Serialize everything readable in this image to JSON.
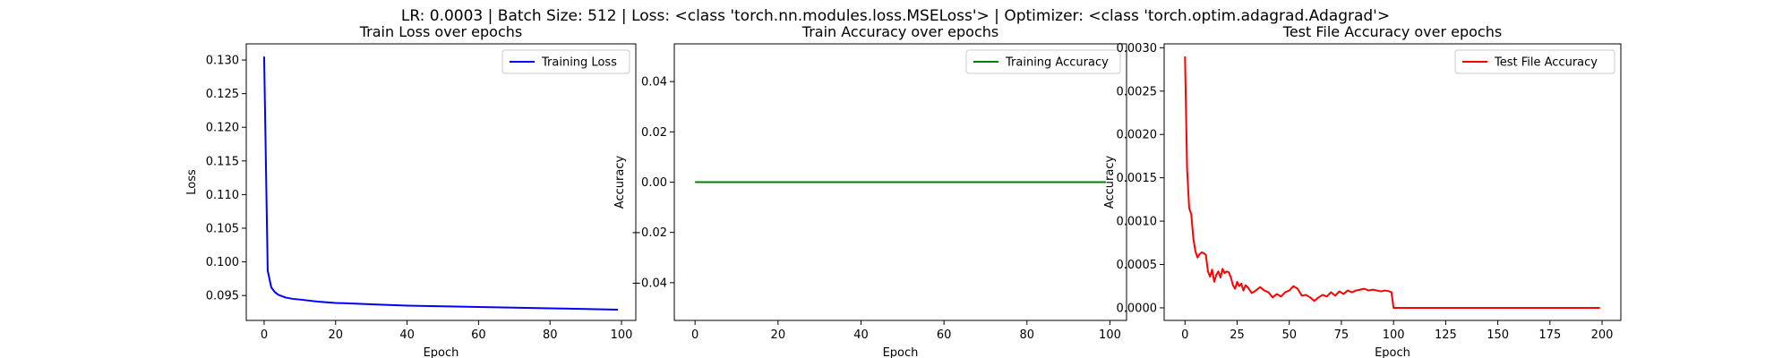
{
  "figure": {
    "suptitle": "LR: 0.0003 | Batch Size: 512 | Loss: <class 'torch.nn.modules.loss.MSELoss'> | Optimizer: <class 'torch.optim.adagrad.Adagrad'>"
  },
  "chart_data": [
    {
      "type": "line",
      "title": "Train Loss over epochs",
      "xlabel": "Epoch",
      "ylabel": "Loss",
      "xlim": [
        -5,
        104
      ],
      "ylim": [
        0.0913,
        0.1324
      ],
      "xticks": [
        0,
        20,
        40,
        60,
        80,
        100
      ],
      "yticks": [
        0.095,
        0.1,
        0.105,
        0.11,
        0.115,
        0.12,
        0.125,
        0.13
      ],
      "ytick_labels": [
        "0.095",
        "0.100",
        "0.105",
        "0.110",
        "0.115",
        "0.120",
        "0.125",
        "0.130"
      ],
      "legend": "top-right",
      "grid": false,
      "series": [
        {
          "name": "Training Loss",
          "color": "#0000ff",
          "x": [
            0,
            1,
            2,
            3,
            4,
            5,
            6,
            8,
            10,
            15,
            20,
            30,
            40,
            50,
            60,
            70,
            80,
            90,
            99
          ],
          "y": [
            0.1305,
            0.0987,
            0.0962,
            0.0955,
            0.0951,
            0.0949,
            0.0947,
            0.0945,
            0.0944,
            0.0941,
            0.0939,
            0.0937,
            0.0935,
            0.0934,
            0.0933,
            0.0932,
            0.0931,
            0.093,
            0.0929
          ]
        }
      ]
    },
    {
      "type": "line",
      "title": "Train Accuracy over epochs",
      "xlabel": "Epoch",
      "ylabel": "Accuracy",
      "xlim": [
        -5,
        104
      ],
      "ylim": [
        -0.055,
        0.055
      ],
      "xticks": [
        0,
        20,
        40,
        60,
        80,
        100
      ],
      "yticks": [
        -0.04,
        -0.02,
        0,
        0.02,
        0.04
      ],
      "ytick_labels": [
        "−0.04",
        "−0.02",
        "0.00",
        "0.02",
        "0.04"
      ],
      "legend": "top-right",
      "grid": false,
      "series": [
        {
          "name": "Training Accuracy",
          "color": "#008000",
          "x": [
            0,
            99
          ],
          "y": [
            0,
            0
          ]
        }
      ]
    },
    {
      "type": "line",
      "title": "Test File Accuracy over epochs",
      "xlabel": "Epoch",
      "ylabel": "Accuracy",
      "xlim": [
        -10,
        209
      ],
      "ylim": [
        -0.000145,
        0.003045
      ],
      "xticks": [
        0,
        25,
        50,
        75,
        100,
        125,
        150,
        175,
        200
      ],
      "yticks": [
        0,
        0.0005,
        0.001,
        0.0015,
        0.002,
        0.0025,
        0.003
      ],
      "ytick_labels": [
        "0.0000",
        "0.0005",
        "0.0010",
        "0.0015",
        "0.0020",
        "0.0025",
        "0.0030"
      ],
      "legend": "top-right",
      "grid": false,
      "series": [
        {
          "name": "Test File Accuracy",
          "color": "#ff0000",
          "x": [
            0,
            1,
            2,
            3,
            4,
            5,
            6,
            7,
            8,
            9,
            10,
            11,
            12,
            13,
            14,
            15,
            16,
            17,
            18,
            19,
            20,
            21,
            22,
            23,
            24,
            25,
            26,
            27,
            28,
            29,
            30,
            32,
            34,
            36,
            38,
            40,
            42,
            44,
            46,
            48,
            50,
            52,
            54,
            56,
            58,
            60,
            62,
            64,
            66,
            68,
            70,
            72,
            74,
            76,
            78,
            80,
            82,
            84,
            86,
            88,
            90,
            92,
            94,
            96,
            98,
            99,
            100,
            101,
            120,
            150,
            180,
            199
          ],
          "y": [
            0.0029,
            0.0016,
            0.00115,
            0.00108,
            0.0008,
            0.00065,
            0.00058,
            0.00062,
            0.00064,
            0.00063,
            0.00061,
            0.00042,
            0.00036,
            0.00044,
            0.0003,
            0.00038,
            0.00042,
            0.00035,
            0.00045,
            0.0004,
            0.00042,
            0.00041,
            0.00035,
            0.00026,
            0.00022,
            0.0003,
            0.00025,
            0.00028,
            0.0002,
            0.00026,
            0.00024,
            0.00017,
            0.0002,
            0.00024,
            0.0002,
            0.00018,
            0.00012,
            0.00016,
            0.00013,
            0.00018,
            0.0002,
            0.00025,
            0.00022,
            0.00014,
            0.00015,
            0.00012,
            8e-05,
            0.00012,
            0.00015,
            0.00013,
            0.00018,
            0.00014,
            0.00019,
            0.00016,
            0.0002,
            0.00018,
            0.0002,
            0.00021,
            0.00022,
            0.0002,
            0.00021,
            0.0002,
            0.00019,
            0.0002,
            0.00019,
            0.00018,
            0,
            0,
            0,
            0,
            0,
            0
          ]
        }
      ]
    }
  ]
}
